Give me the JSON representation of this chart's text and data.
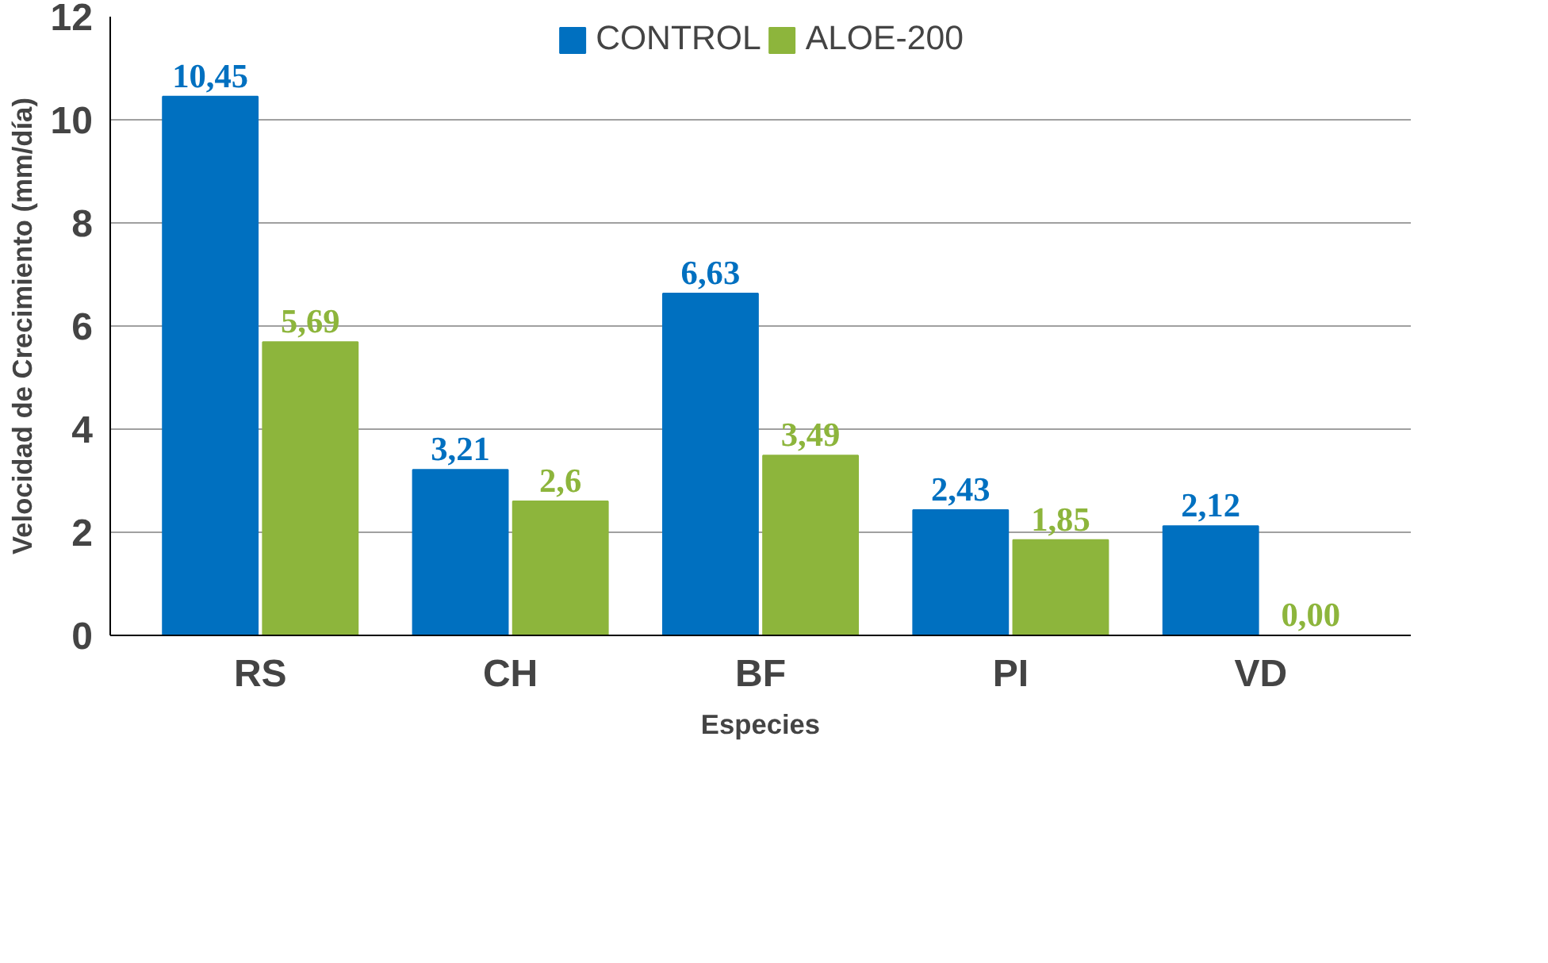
{
  "chart_data": {
    "type": "bar",
    "xlabel": "Especies",
    "ylabel": "Velocidad de Crecimiento (mm/día)",
    "categories": [
      "RS",
      "CH",
      "BF",
      "PI",
      "VD"
    ],
    "series": [
      {
        "name": "CONTROL",
        "color": "#0070c0",
        "values": [
          10.45,
          3.21,
          6.63,
          2.43,
          2.12
        ],
        "value_labels": [
          "10,45",
          "3,21",
          "6,63",
          "2,43",
          "2,12"
        ]
      },
      {
        "name": "ALOE-200",
        "color": "#8db53c",
        "values": [
          5.69,
          2.6,
          3.49,
          1.85,
          0.0
        ],
        "value_labels": [
          "5,69",
          "2,6",
          "3,49",
          "1,85",
          "0,00"
        ]
      }
    ],
    "ylim": [
      0,
      12
    ],
    "yticks": [
      0,
      2,
      4,
      6,
      8,
      10,
      12
    ],
    "grid": "y",
    "legend": "top"
  }
}
